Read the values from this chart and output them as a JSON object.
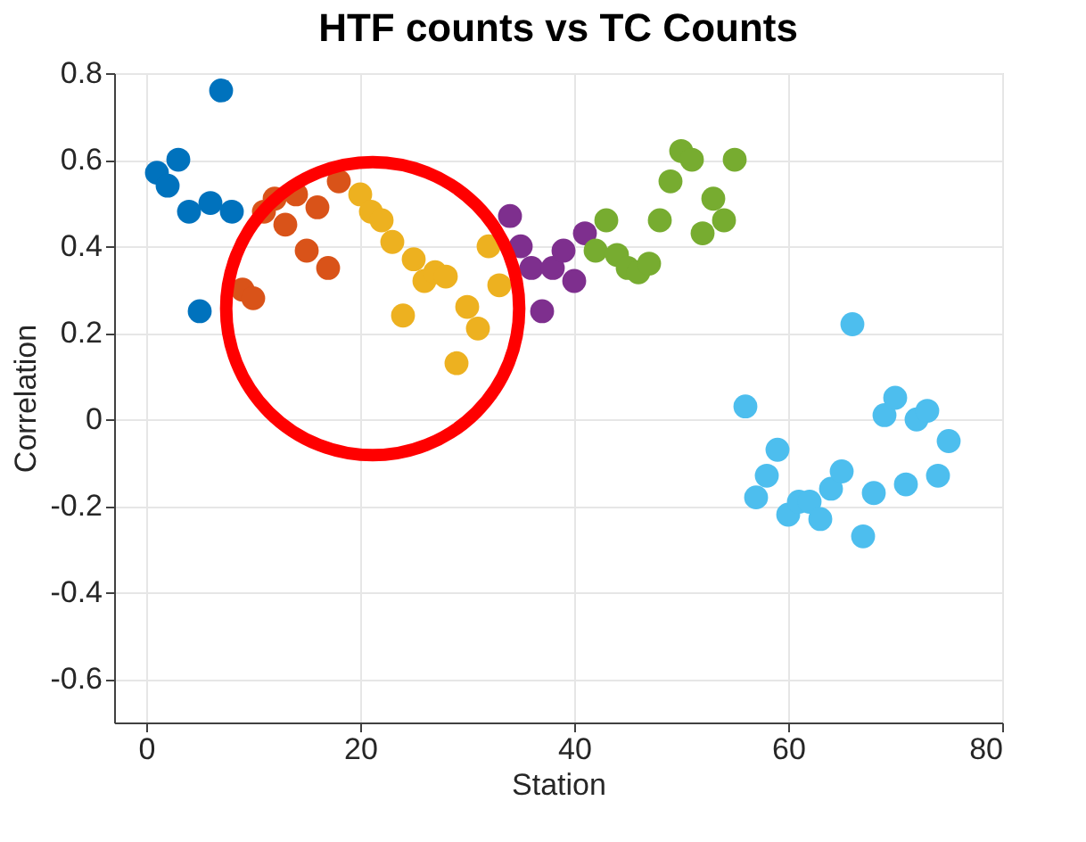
{
  "chart_data": {
    "type": "scatter",
    "title": "HTF counts vs TC Counts",
    "xlabel": "Station",
    "ylabel": "Correlation",
    "xlim": [
      -3,
      80
    ],
    "xticks": [
      0,
      20,
      40,
      60,
      80
    ],
    "ylim": [
      -0.7,
      0.8
    ],
    "yticks": [
      -0.6,
      -0.4,
      -0.2,
      0,
      0.2,
      0.4,
      0.6,
      0.8
    ],
    "grid": true,
    "legend": false,
    "marker": "circle",
    "series": [
      {
        "color": "#0072bd",
        "x": [
          1,
          2,
          3,
          4,
          5,
          6,
          7,
          8
        ],
        "values": [
          0.57,
          0.54,
          0.6,
          0.48,
          0.25,
          0.5,
          0.76,
          0.48
        ]
      },
      {
        "color": "#d95319",
        "x": [
          9,
          10,
          11,
          12,
          13,
          14,
          15,
          16,
          17,
          18
        ],
        "values": [
          0.3,
          0.28,
          0.48,
          0.51,
          0.45,
          0.52,
          0.39,
          0.49,
          0.35,
          0.55
        ]
      },
      {
        "color": "#edb120",
        "x": [
          20,
          21,
          22,
          23,
          24,
          25,
          26,
          27,
          28,
          29,
          30,
          31,
          32,
          33
        ],
        "values": [
          0.52,
          0.48,
          0.46,
          0.41,
          0.24,
          0.37,
          0.32,
          0.34,
          0.33,
          0.13,
          0.26,
          0.21,
          0.4,
          0.31
        ]
      },
      {
        "color": "#7e2f8e",
        "x": [
          34,
          35,
          36,
          37,
          38,
          39,
          40,
          41
        ],
        "values": [
          0.47,
          0.4,
          0.35,
          0.25,
          0.35,
          0.39,
          0.32,
          0.43
        ]
      },
      {
        "color": "#77ac30",
        "x": [
          42,
          43,
          44,
          45,
          46,
          47,
          48,
          49,
          50,
          51,
          52,
          53,
          54,
          55
        ],
        "values": [
          0.39,
          0.46,
          0.38,
          0.35,
          0.34,
          0.36,
          0.46,
          0.55,
          0.62,
          0.6,
          0.43,
          0.51,
          0.46,
          0.6
        ]
      },
      {
        "color": "#4dbeee",
        "x": [
          56,
          57,
          58,
          59,
          60,
          61,
          62,
          63,
          64,
          65,
          66,
          67,
          68,
          69,
          70,
          71,
          72,
          73,
          74,
          75
        ],
        "values": [
          0.03,
          -0.18,
          -0.13,
          -0.07,
          -0.22,
          -0.19,
          -0.19,
          -0.23,
          -0.16,
          -0.12,
          0.22,
          -0.27,
          -0.17,
          0.01,
          0.05,
          -0.15,
          0.0,
          0.02,
          -0.13,
          -0.05
        ]
      }
    ]
  }
}
